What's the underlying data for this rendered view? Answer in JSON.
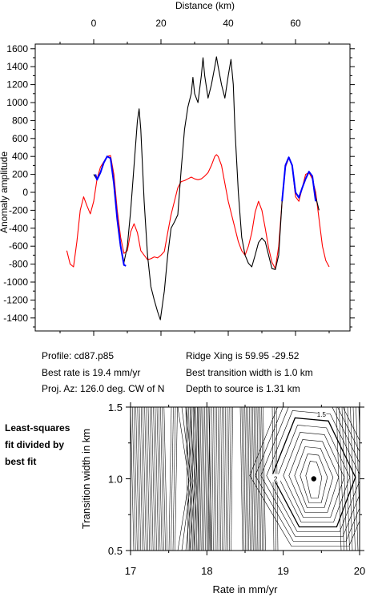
{
  "profile_info": {
    "profile": "Profile: cd87.p85",
    "best_rate": "Best rate is 19.4 mm/yr",
    "proj_az": "Proj. Az: 126.0 deg. CW of N",
    "ridge_xing": "Ridge Xing is 59.95 -29.52",
    "best_width": "Best transition width is 1.0 km",
    "depth": "Depth to source is   1.31 km"
  },
  "side_label": [
    "Least-squares",
    "fit divided by",
    "best fit"
  ],
  "chart_data": [
    {
      "type": "line",
      "xlabel": "Distance (km)",
      "ylabel": "Anomaly amplitude",
      "xlim": [
        -12,
        70
      ],
      "ylim": [
        -1550,
        1650
      ],
      "x_ticks": [
        0,
        20,
        40,
        60
      ],
      "y_ticks": [
        -1400,
        -1200,
        -1000,
        -800,
        -600,
        -400,
        -200,
        0,
        200,
        400,
        600,
        800,
        1000,
        1200,
        1400,
        1600
      ],
      "series": [
        {
          "color": "#000000",
          "points": [
            [
              0,
              200
            ],
            [
              1,
              140
            ],
            [
              2,
              220
            ],
            [
              3,
              330
            ],
            [
              4,
              400
            ],
            [
              5,
              380
            ],
            [
              6,
              100
            ],
            [
              7,
              -300
            ],
            [
              8,
              -600
            ],
            [
              9,
              -780
            ],
            [
              10,
              -600
            ],
            [
              11,
              -200
            ],
            [
              12,
              300
            ],
            [
              13,
              800
            ],
            [
              13.5,
              930
            ],
            [
              14,
              700
            ],
            [
              15,
              -100
            ],
            [
              16,
              -700
            ],
            [
              17,
              -1050
            ],
            [
              18,
              -1200
            ],
            [
              19,
              -1330
            ],
            [
              19.8,
              -1420
            ],
            [
              21,
              -1100
            ],
            [
              22,
              -700
            ],
            [
              23,
              -400
            ],
            [
              24,
              -330
            ],
            [
              25,
              -250
            ],
            [
              26,
              250
            ],
            [
              27,
              700
            ],
            [
              28,
              950
            ],
            [
              29,
              1100
            ],
            [
              29.5,
              1280
            ],
            [
              30,
              1100
            ],
            [
              31,
              1000
            ],
            [
              32,
              1300
            ],
            [
              32.5,
              1500
            ],
            [
              33,
              1300
            ],
            [
              34,
              1050
            ],
            [
              35,
              1200
            ],
            [
              36,
              1400
            ],
            [
              36.5,
              1510
            ],
            [
              37,
              1400
            ],
            [
              38,
              1200
            ],
            [
              39,
              1050
            ],
            [
              40,
              1300
            ],
            [
              40.8,
              1480
            ],
            [
              41.5,
              1200
            ],
            [
              42,
              700
            ],
            [
              43,
              0
            ],
            [
              44,
              -500
            ],
            [
              45,
              -700
            ],
            [
              46,
              -790
            ],
            [
              47,
              -830
            ],
            [
              48,
              -700
            ],
            [
              49,
              -560
            ],
            [
              50,
              -510
            ],
            [
              51,
              -550
            ],
            [
              52,
              -700
            ],
            [
              53,
              -850
            ],
            [
              54,
              -860
            ],
            [
              55,
              -700
            ],
            [
              56,
              -100
            ],
            [
              57,
              300
            ],
            [
              58,
              390
            ],
            [
              59,
              300
            ],
            [
              60,
              0
            ],
            [
              61,
              -50
            ],
            [
              62,
              50
            ],
            [
              63,
              150
            ],
            [
              64,
              230
            ],
            [
              65,
              180
            ],
            [
              66,
              -50
            ],
            [
              67,
              -200
            ]
          ]
        },
        {
          "color": "#ff0000",
          "points": [
            [
              -8,
              -650
            ],
            [
              -7,
              -800
            ],
            [
              -6,
              -830
            ],
            [
              -5,
              -550
            ],
            [
              -4,
              -200
            ],
            [
              -3,
              -50
            ],
            [
              -2,
              -150
            ],
            [
              -1,
              -240
            ],
            [
              0,
              -100
            ],
            [
              1,
              150
            ],
            [
              2,
              280
            ],
            [
              3,
              340
            ],
            [
              4,
              400
            ],
            [
              5,
              410
            ],
            [
              6,
              200
            ],
            [
              7,
              -200
            ],
            [
              8,
              -500
            ],
            [
              9,
              -680
            ],
            [
              10,
              -650
            ],
            [
              11,
              -440
            ],
            [
              12,
              -350
            ],
            [
              13,
              -450
            ],
            [
              14,
              -650
            ],
            [
              15,
              -700
            ],
            [
              16,
              -750
            ],
            [
              17,
              -740
            ],
            [
              18,
              -720
            ],
            [
              19,
              -730
            ],
            [
              20,
              -700
            ],
            [
              21,
              -660
            ],
            [
              22,
              -450
            ],
            [
              23,
              -250
            ],
            [
              24,
              -100
            ],
            [
              25,
              50
            ],
            [
              26,
              120
            ],
            [
              27,
              130
            ],
            [
              28,
              150
            ],
            [
              29,
              170
            ],
            [
              30,
              150
            ],
            [
              31,
              140
            ],
            [
              32,
              150
            ],
            [
              33,
              180
            ],
            [
              34,
              220
            ],
            [
              35,
              300
            ],
            [
              36,
              400
            ],
            [
              36.5,
              420
            ],
            [
              37,
              400
            ],
            [
              38,
              300
            ],
            [
              39,
              100
            ],
            [
              40,
              -100
            ],
            [
              41,
              -250
            ],
            [
              42,
              -400
            ],
            [
              43,
              -550
            ],
            [
              44,
              -650
            ],
            [
              45,
              -700
            ],
            [
              46,
              -600
            ],
            [
              47,
              -450
            ],
            [
              48,
              -220
            ],
            [
              49,
              -100
            ],
            [
              50,
              -200
            ],
            [
              51,
              -400
            ],
            [
              52,
              -620
            ],
            [
              53,
              -780
            ],
            [
              54,
              -850
            ],
            [
              55,
              -600
            ],
            [
              56,
              -100
            ],
            [
              57,
              280
            ],
            [
              58,
              380
            ],
            [
              59,
              300
            ],
            [
              60,
              -50
            ],
            [
              61,
              -100
            ],
            [
              62,
              50
            ],
            [
              63,
              200
            ],
            [
              64,
              220
            ],
            [
              65,
              150
            ],
            [
              66,
              0
            ],
            [
              67,
              -300
            ],
            [
              68,
              -600
            ],
            [
              69,
              -760
            ],
            [
              70,
              -830
            ]
          ]
        },
        {
          "color": "#0000ff",
          "points": [
            [
              0.5,
              200
            ],
            [
              1,
              140
            ],
            [
              2,
              220
            ],
            [
              3,
              330
            ],
            [
              4,
              400
            ],
            [
              5,
              380
            ],
            [
              6,
              100
            ],
            [
              7,
              -300
            ],
            [
              8,
              -600
            ],
            [
              9,
              -810
            ],
            [
              9.6,
              -820
            ],
            [
              56,
              -100
            ],
            [
              57,
              300
            ],
            [
              58,
              390
            ],
            [
              59,
              300
            ],
            [
              60,
              0
            ],
            [
              61,
              -60
            ],
            [
              62,
              50
            ],
            [
              63,
              150
            ],
            [
              64,
              230
            ],
            [
              65,
              180
            ],
            [
              66,
              -100
            ]
          ]
        }
      ]
    },
    {
      "type": "contour",
      "xlabel": "Rate in mm/yr",
      "ylabel": "Transition width in km",
      "xlim": [
        17,
        20
      ],
      "ylim": [
        0.5,
        1.5
      ],
      "x_ticks": [
        17,
        18,
        19,
        20
      ],
      "y_ticks": [
        0.5,
        1.0,
        1.5
      ],
      "contour_labels": [
        {
          "text": "1.5",
          "x": 19.5,
          "y": 1.45
        },
        {
          "text": "2",
          "x": 18.9,
          "y": 1.0
        }
      ],
      "best_fit_point": {
        "x": 19.4,
        "y": 1.0
      }
    }
  ]
}
